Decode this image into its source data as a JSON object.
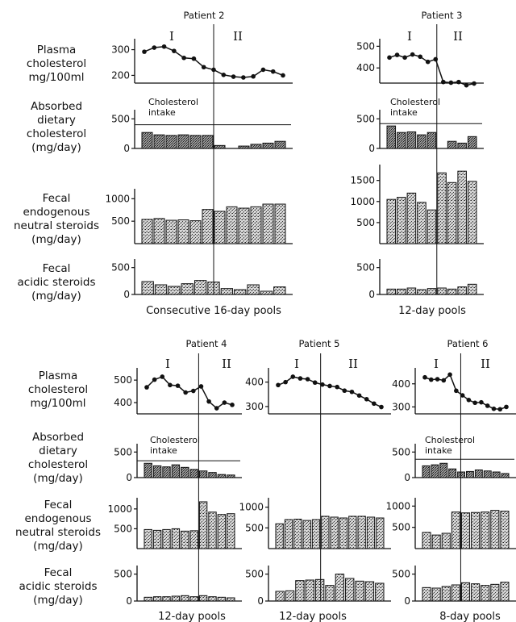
{
  "row_labels": {
    "plasma": [
      "Plasma",
      "cholesterol",
      "mg/100ml"
    ],
    "absorbed": [
      "Absorbed",
      "dietary",
      "cholesterol",
      "(mg/day)"
    ],
    "fecal_neutral": [
      "Fecal",
      "endogenous",
      "neutral steroids",
      "(mg/day)"
    ],
    "fecal_acidic": [
      "Fecal",
      "acidic steroids",
      "(mg/day)"
    ]
  },
  "phase_labels": [
    "I",
    "II"
  ],
  "intake_label": [
    "Cholesterol",
    "intake"
  ],
  "chart_data": [
    {
      "type": "line+bar",
      "title": "Patient 2",
      "pool_label": "Consecutive 16-day pools",
      "split_after": 6,
      "plasma": {
        "values": [
          292,
          308,
          312,
          295,
          268,
          265,
          232,
          222,
          202,
          195,
          192,
          196,
          222,
          215,
          200
        ],
        "ticks": [
          200,
          300
        ],
        "ylim": [
          170,
          330
        ]
      },
      "absorbed": {
        "values": [
          270,
          230,
          220,
          230,
          220,
          220,
          50,
          0,
          40,
          70,
          90,
          120
        ],
        "intake": 400,
        "ticks": [
          0,
          500
        ],
        "ylim": [
          0,
          600
        ]
      },
      "fecal_neutral": {
        "values": [
          540,
          560,
          520,
          530,
          510,
          760,
          720,
          820,
          790,
          820,
          880,
          880
        ],
        "ticks": [
          500,
          1000
        ],
        "ylim": [
          0,
          1150
        ]
      },
      "fecal_acidic": {
        "values": [
          240,
          180,
          150,
          200,
          260,
          230,
          110,
          90,
          180,
          60,
          140
        ],
        "ticks": [
          0,
          500
        ],
        "ylim": [
          0,
          600
        ]
      }
    },
    {
      "type": "line+bar",
      "title": "Patient 3",
      "pool_label": "12-day pools",
      "split_after": 5,
      "plasma": {
        "values": [
          448,
          460,
          448,
          462,
          452,
          428,
          440,
          335,
          332,
          335,
          320,
          328
        ],
        "ticks": [
          400,
          500
        ],
        "ylim": [
          330,
          520
        ]
      },
      "absorbed": {
        "values": [
          380,
          270,
          280,
          230,
          270,
          0,
          120,
          90,
          200
        ],
        "intake": 420,
        "ticks": [
          0,
          500
        ],
        "ylim": [
          0,
          600
        ]
      },
      "fecal_neutral": {
        "values": [
          1050,
          1100,
          1200,
          980,
          800,
          1680,
          1450,
          1720,
          1480
        ],
        "ticks": [
          500,
          1000,
          1500
        ],
        "ylim": [
          0,
          1800
        ]
      },
      "fecal_acidic": {
        "values": [
          100,
          100,
          120,
          90,
          110,
          120,
          100,
          140,
          190
        ],
        "ticks": [
          0,
          500
        ],
        "ylim": [
          0,
          600
        ]
      }
    },
    {
      "type": "line+bar",
      "title": "Patient 4",
      "pool_label": "12-day pools",
      "split_after": 6,
      "plasma": {
        "values": [
          468,
          502,
          515,
          478,
          475,
          445,
          452,
          472,
          405,
          375,
          400,
          390
        ],
        "ticks": [
          400,
          500
        ],
        "ylim": [
          350,
          540
        ]
      },
      "absorbed": {
        "values": [
          280,
          230,
          210,
          250,
          200,
          160,
          130,
          100,
          60,
          50
        ],
        "intake": 330,
        "ticks": [
          0,
          500
        ],
        "ylim": [
          0,
          600
        ]
      },
      "fecal_neutral": {
        "values": [
          480,
          460,
          480,
          500,
          440,
          450,
          1180,
          920,
          860,
          880
        ],
        "ticks": [
          500,
          1000
        ],
        "ylim": [
          0,
          1200
        ]
      },
      "fecal_acidic": {
        "values": [
          70,
          80,
          80,
          90,
          100,
          80,
          100,
          80,
          70,
          60
        ],
        "ticks": [
          0,
          500
        ],
        "ylim": [
          0,
          600
        ]
      }
    },
    {
      "type": "line+bar",
      "title": "Patient 5",
      "pool_label": "12-day pools",
      "split_after": 5,
      "plasma": {
        "values": [
          388,
          400,
          422,
          415,
          412,
          398,
          390,
          384,
          380,
          365,
          360,
          345,
          330,
          312,
          298
        ],
        "ticks": [
          300,
          400
        ],
        "ylim": [
          270,
          445
        ]
      },
      "fecal_neutral": {
        "values": [
          600,
          700,
          710,
          680,
          700,
          780,
          760,
          740,
          780,
          780,
          760,
          740
        ],
        "ticks": [
          500,
          1000
        ],
        "ylim": [
          0,
          1150
        ]
      },
      "fecal_acidic": {
        "values": [
          180,
          190,
          380,
          390,
          400,
          290,
          500,
          420,
          370,
          360,
          330
        ],
        "ticks": [
          0,
          500
        ],
        "ylim": [
          0,
          600
        ]
      }
    },
    {
      "type": "line+bar",
      "title": "Patient 6",
      "pool_label": "8-day pools",
      "split_after": 4,
      "plasma": {
        "values": [
          428,
          418,
          420,
          415,
          440,
          370,
          350,
          330,
          318,
          320,
          305,
          292,
          290,
          300
        ],
        "ticks": [
          300,
          400
        ],
        "ylim": [
          270,
          455
        ]
      },
      "absorbed": {
        "values": [
          230,
          250,
          280,
          170,
          110,
          120,
          150,
          130,
          110,
          80
        ],
        "intake": 360,
        "ticks": [
          0,
          500
        ],
        "ylim": [
          0,
          600
        ]
      },
      "fecal_neutral": {
        "values": [
          380,
          320,
          360,
          860,
          840,
          850,
          860,
          900,
          880
        ],
        "ticks": [
          500,
          1000
        ],
        "ylim": [
          0,
          1120
        ]
      },
      "fecal_acidic": {
        "values": [
          250,
          240,
          270,
          300,
          340,
          320,
          290,
          310,
          350
        ],
        "ticks": [
          0,
          500
        ],
        "ylim": [
          0,
          600
        ]
      }
    }
  ]
}
